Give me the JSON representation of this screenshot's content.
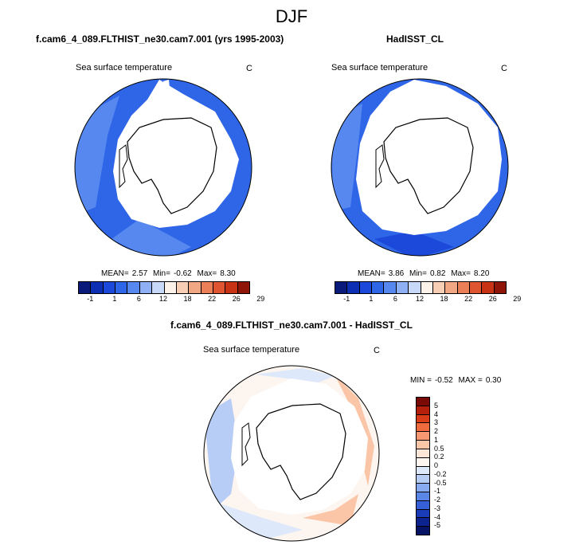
{
  "title": "DJF",
  "panels": {
    "model": {
      "title": "f.cam6_4_089.FLTHIST_ne30.cam7.001 (yrs 1995-2003)",
      "var_label": "Sea surface temperature",
      "units": "C",
      "mean_label": "MEAN=",
      "mean": "2.57",
      "min_label": "Min=",
      "min": "-0.62",
      "max_label": "Max=",
      "max": "8.30"
    },
    "obs": {
      "title": "HadISST_CL",
      "var_label": "Sea surface temperature",
      "units": "C",
      "mean_label": "MEAN=",
      "mean": "3.86",
      "min_label": "Min=",
      "min": "0.82",
      "max_label": "Max=",
      "max": "8.20"
    },
    "diff": {
      "title": "f.cam6_4_089.FLTHIST_ne30.cam7.001 - HadISST_CL",
      "var_label": "Sea surface temperature",
      "units": "C",
      "min_label": "MIN =",
      "min": "-0.52",
      "max_label": "MAX =",
      "max": "0.30"
    }
  },
  "colorbars": {
    "abs": {
      "colors": [
        "#0a1a7a",
        "#0d2fb3",
        "#1c49d9",
        "#2f66e8",
        "#5688f0",
        "#8fb0f5",
        "#c8d8f8",
        "#fdf2ea",
        "#f8cfb4",
        "#f2a784",
        "#eb7f57",
        "#e05531",
        "#c83316",
        "#8f1508"
      ],
      "labels": [
        "-1",
        "1",
        "6",
        "12",
        "18",
        "22",
        "26",
        "29"
      ]
    },
    "diff": {
      "colors": [
        "#7a0a05",
        "#b5200c",
        "#d93d18",
        "#ef6a3c",
        "#f69872",
        "#fbc5a8",
        "#fde6d8",
        "#fdf6f0",
        "#dde8fb",
        "#b8cdf6",
        "#88aaf0",
        "#5a86e6",
        "#3560d8",
        "#1a3cb8",
        "#0d2490",
        "#071466"
      ],
      "labels": [
        "5",
        "4",
        "3",
        "2",
        "1",
        "0.5",
        "0.2",
        "0",
        "-0.2",
        "-0.5",
        "-1",
        "-2",
        "-3",
        "-4",
        "-5"
      ]
    }
  },
  "chart_data": [
    {
      "type": "heatmap",
      "title": "f.cam6_4_089.FLTHIST_ne30.cam7.001 (yrs 1995-2003)",
      "subtitle": "Sea surface temperature",
      "units": "C",
      "projection": "south-polar stereographic",
      "season": "DJF",
      "stats": {
        "mean": 2.57,
        "min": -0.62,
        "max": 8.3
      },
      "contour_levels": [
        -1,
        1,
        6,
        12,
        18,
        22,
        26,
        29
      ],
      "dominant_range": [
        -1,
        6
      ]
    },
    {
      "type": "heatmap",
      "title": "HadISST_CL",
      "subtitle": "Sea surface temperature",
      "units": "C",
      "projection": "south-polar stereographic",
      "season": "DJF",
      "stats": {
        "mean": 3.86,
        "min": 0.82,
        "max": 8.2
      },
      "contour_levels": [
        -1,
        1,
        6,
        12,
        18,
        22,
        26,
        29
      ],
      "dominant_range": [
        1,
        6
      ]
    },
    {
      "type": "heatmap",
      "title": "f.cam6_4_089.FLTHIST_ne30.cam7.001 - HadISST_CL",
      "subtitle": "Sea surface temperature",
      "units": "C",
      "projection": "south-polar stereographic",
      "season": "DJF",
      "stats": {
        "min": -0.52,
        "max": 0.3
      },
      "contour_levels": [
        -5,
        -4,
        -3,
        -2,
        -1,
        -0.5,
        -0.2,
        0,
        0.2,
        0.5,
        1,
        2,
        3,
        4,
        5
      ]
    }
  ]
}
